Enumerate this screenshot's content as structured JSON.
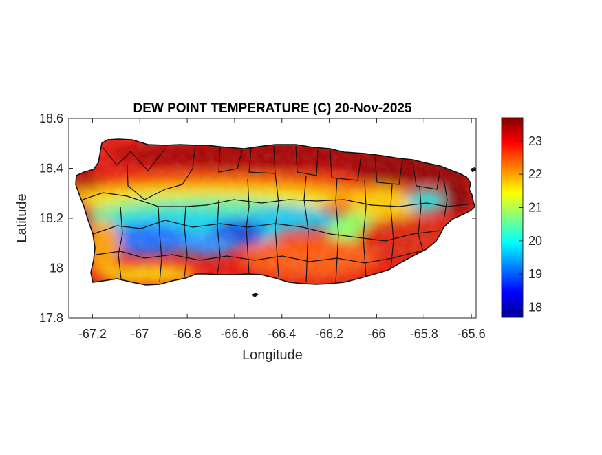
{
  "figure": {
    "title": "DEW POINT TEMPERATURE (C) 20-Nov-2025",
    "xlabel": "Longitude",
    "ylabel": "Latitude"
  },
  "chart_data": {
    "type": "heatmap",
    "title": "DEW POINT TEMPERATURE (C) 20-Nov-2025",
    "xlabel": "Longitude",
    "ylabel": "Latitude",
    "xlim": [
      -67.3,
      -65.58
    ],
    "ylim": [
      17.8,
      18.6
    ],
    "x_ticks": [
      -67.2,
      -67,
      -66.8,
      -66.6,
      -66.4,
      -66.2,
      -66,
      -65.8,
      -65.6
    ],
    "y_ticks": [
      17.8,
      18,
      18.2,
      18.4,
      18.6
    ],
    "x_tick_labels": [
      "-67.2",
      "-67",
      "-66.8",
      "-66.6",
      "-66.4",
      "-66.2",
      "-66",
      "-65.8",
      "-65.6"
    ],
    "y_tick_labels": [
      "17.8",
      "18",
      "18.2",
      "18.4",
      "18.6"
    ],
    "colorbar": {
      "colormap": "jet",
      "range": [
        17.7,
        23.7
      ],
      "ticks": [
        18,
        19,
        20,
        21,
        22,
        23
      ],
      "tick_labels": [
        "18",
        "19",
        "20",
        "21",
        "22",
        "23"
      ]
    },
    "grid": false,
    "region": "Puerto Rico",
    "colors": {
      "jet_low": "#00008f",
      "jet_mid": "#7fff7f",
      "jet_high": "#800000",
      "boundary": "#111111"
    }
  }
}
